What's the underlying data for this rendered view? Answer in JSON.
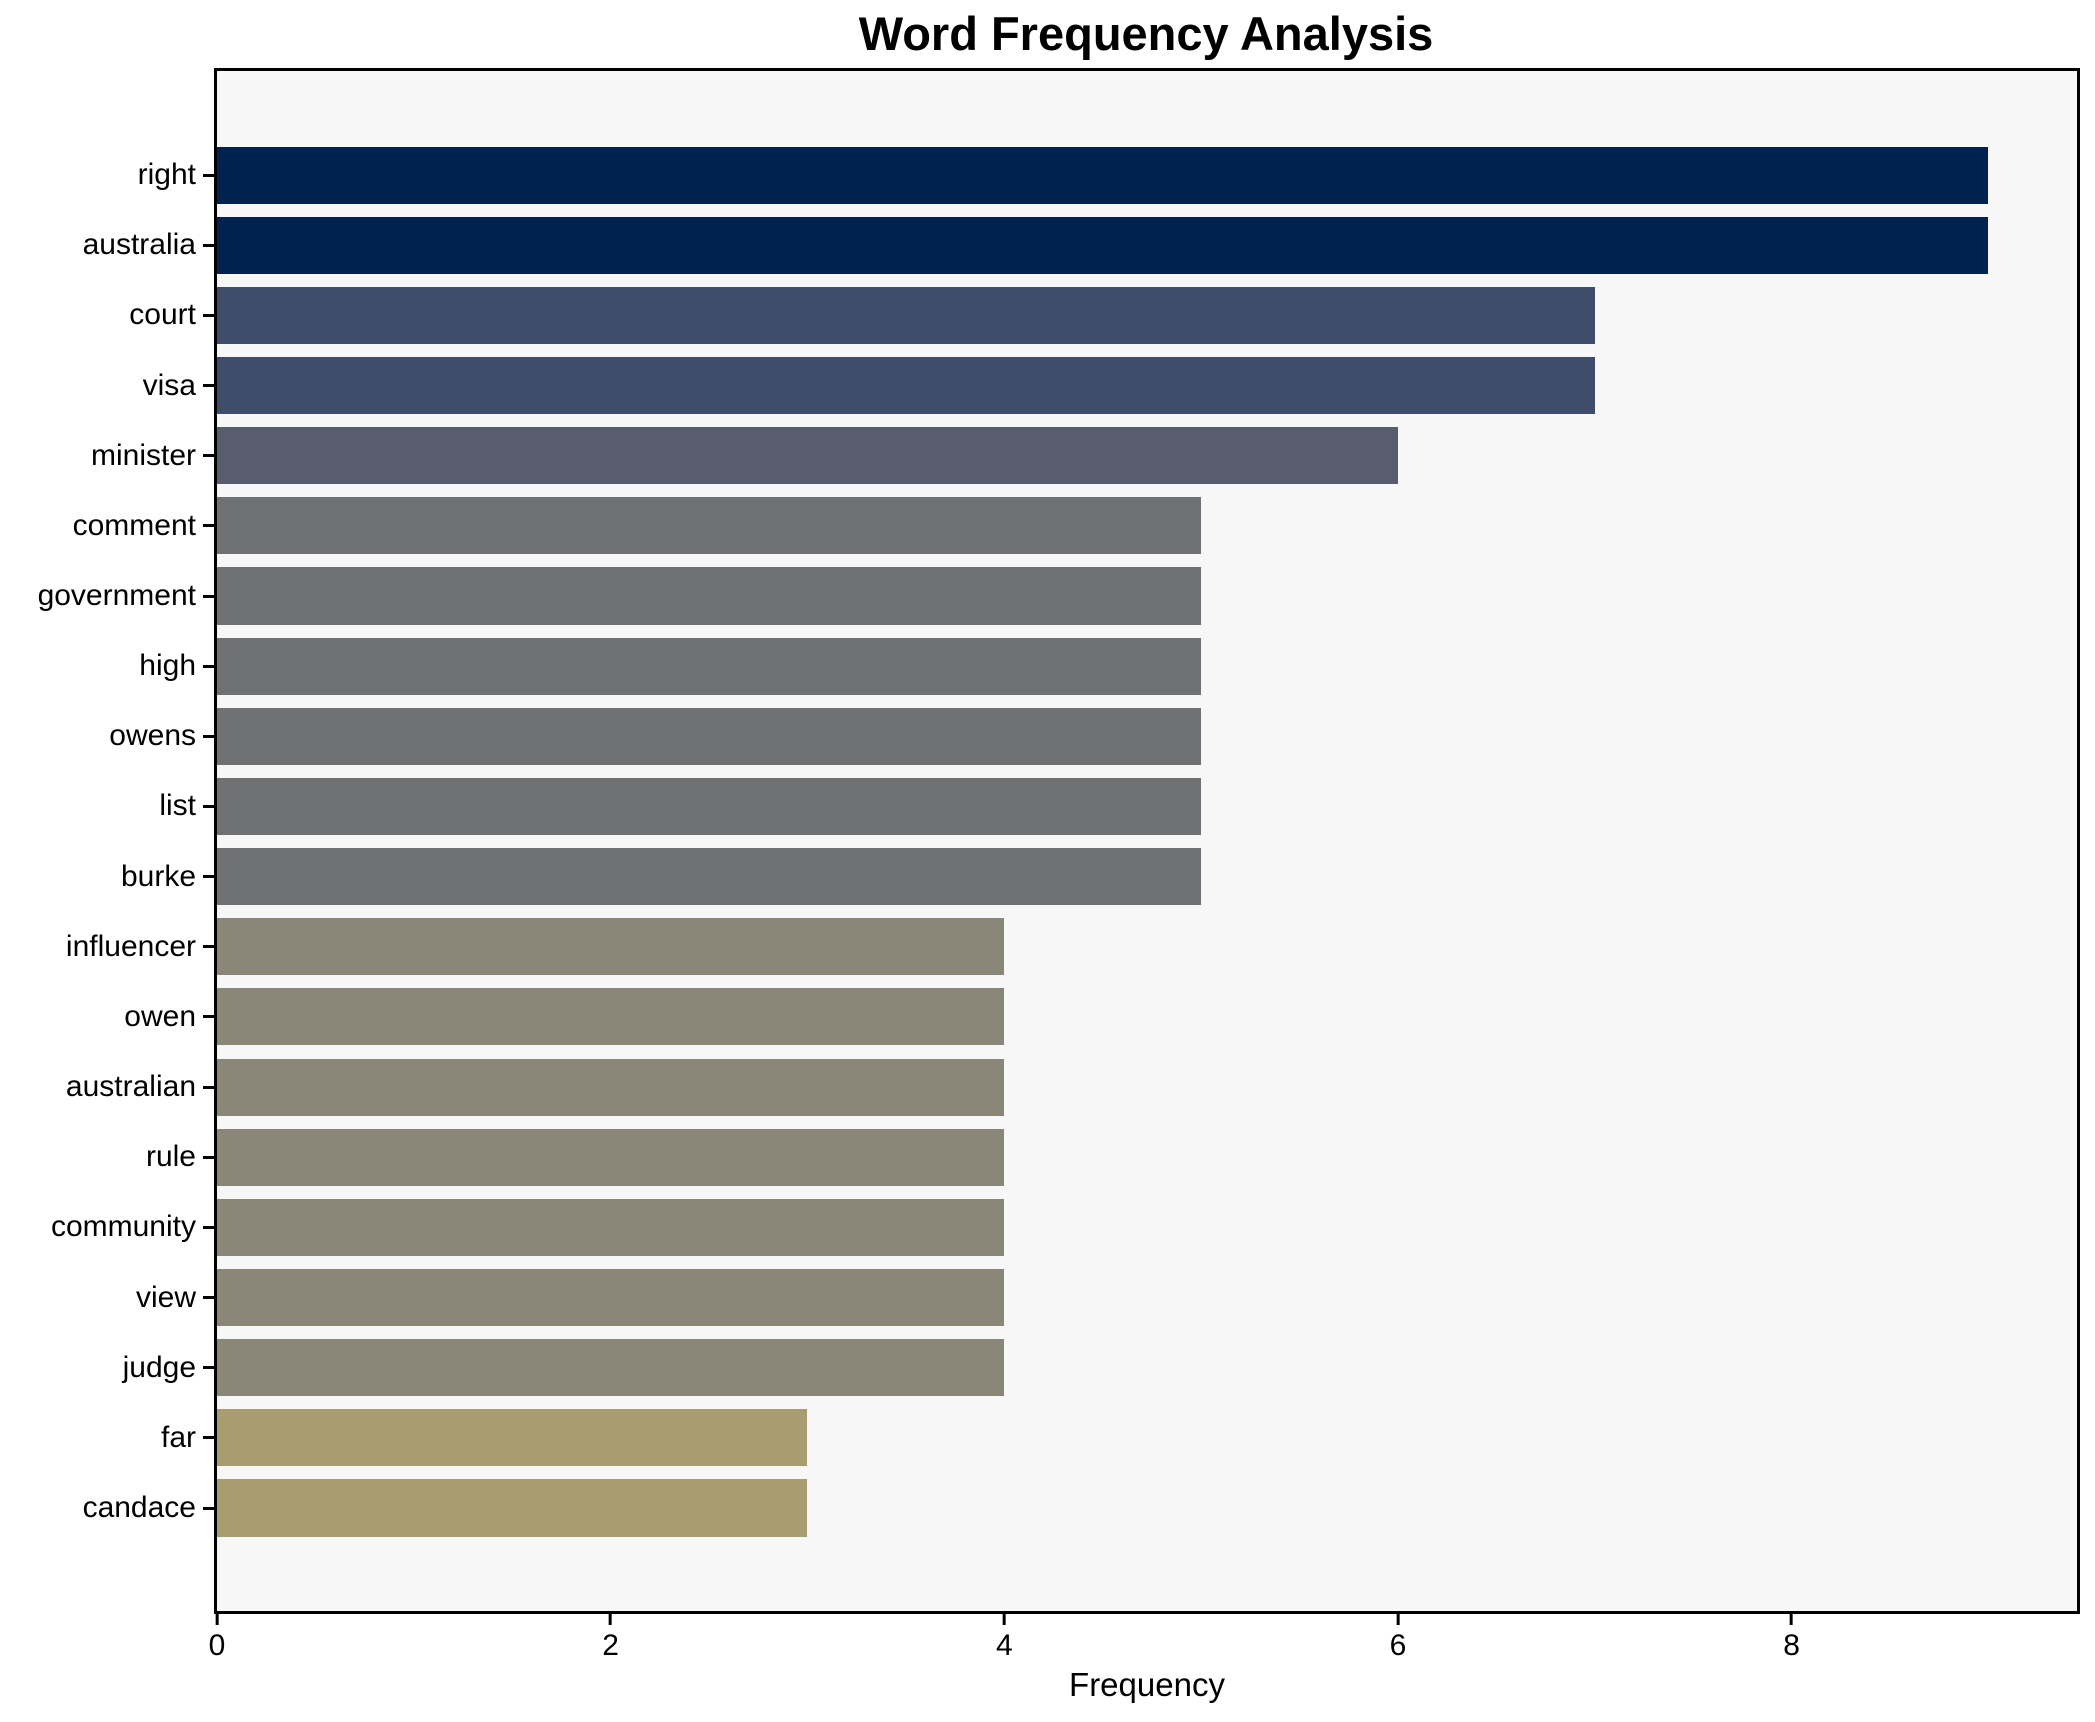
{
  "chart_data": {
    "type": "bar",
    "orientation": "horizontal",
    "title": "Word Frequency Analysis",
    "xlabel": "Frequency",
    "ylabel": "",
    "categories": [
      "right",
      "australia",
      "court",
      "visa",
      "minister",
      "comment",
      "government",
      "high",
      "owens",
      "list",
      "burke",
      "influencer",
      "owen",
      "australian",
      "rule",
      "community",
      "view",
      "judge",
      "far",
      "candace"
    ],
    "values": [
      9,
      9,
      7,
      7,
      6,
      5,
      5,
      5,
      5,
      5,
      5,
      4,
      4,
      4,
      4,
      4,
      4,
      4,
      3,
      3
    ],
    "bar_colors": [
      "#00224e",
      "#00224e",
      "#3f4c6b",
      "#3f4c6b",
      "#575d6d",
      "#707173",
      "#707173",
      "#707173",
      "#707173",
      "#707173",
      "#707173",
      "#8a8678",
      "#8a8678",
      "#8a8678",
      "#8a8678",
      "#8a8678",
      "#8a8678",
      "#8a8678",
      "#a79d71",
      "#a79d71"
    ],
    "xticks": [
      0,
      2,
      4,
      6,
      8
    ],
    "xlim": [
      0,
      9.45
    ],
    "grid": false,
    "legend_position": "none",
    "plot_bg": "#f7f7f8",
    "figure_bg": "#ffffff",
    "spine_color": "#000000",
    "text_color": "#000000"
  }
}
